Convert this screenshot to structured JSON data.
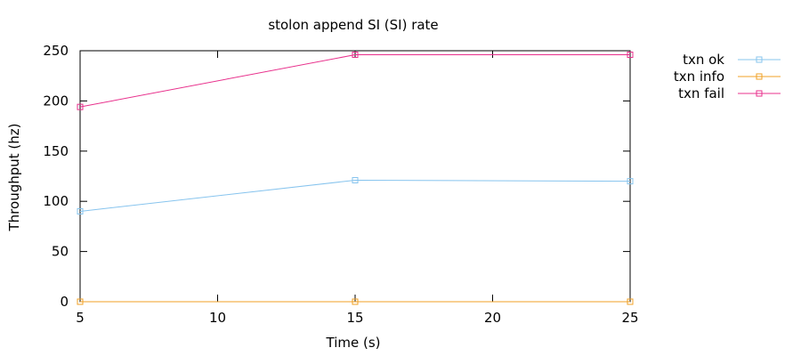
{
  "chart_data": {
    "type": "line",
    "title": "stolon append SI (SI)  rate",
    "xlabel": "Time (s)",
    "ylabel": "Throughput (hz)",
    "xlim": [
      5,
      25
    ],
    "ylim": [
      0,
      250
    ],
    "xticks": [
      5,
      10,
      15,
      20,
      25
    ],
    "yticks": [
      0,
      50,
      100,
      150,
      200,
      250
    ],
    "grid": false,
    "legend_position": "outside-right-top",
    "series": [
      {
        "name": "txn ok",
        "color": "#87c4ee",
        "marker": "open-square",
        "x": [
          5,
          15,
          25
        ],
        "y": [
          90,
          121,
          120
        ]
      },
      {
        "name": "txn info",
        "color": "#f0a024",
        "marker": "open-square",
        "x": [
          5,
          15,
          25
        ],
        "y": [
          0,
          0,
          0
        ]
      },
      {
        "name": "txn fail",
        "color": "#e8308c",
        "marker": "open-square",
        "x": [
          5,
          15,
          25
        ],
        "y": [
          194,
          246,
          246
        ]
      }
    ]
  }
}
